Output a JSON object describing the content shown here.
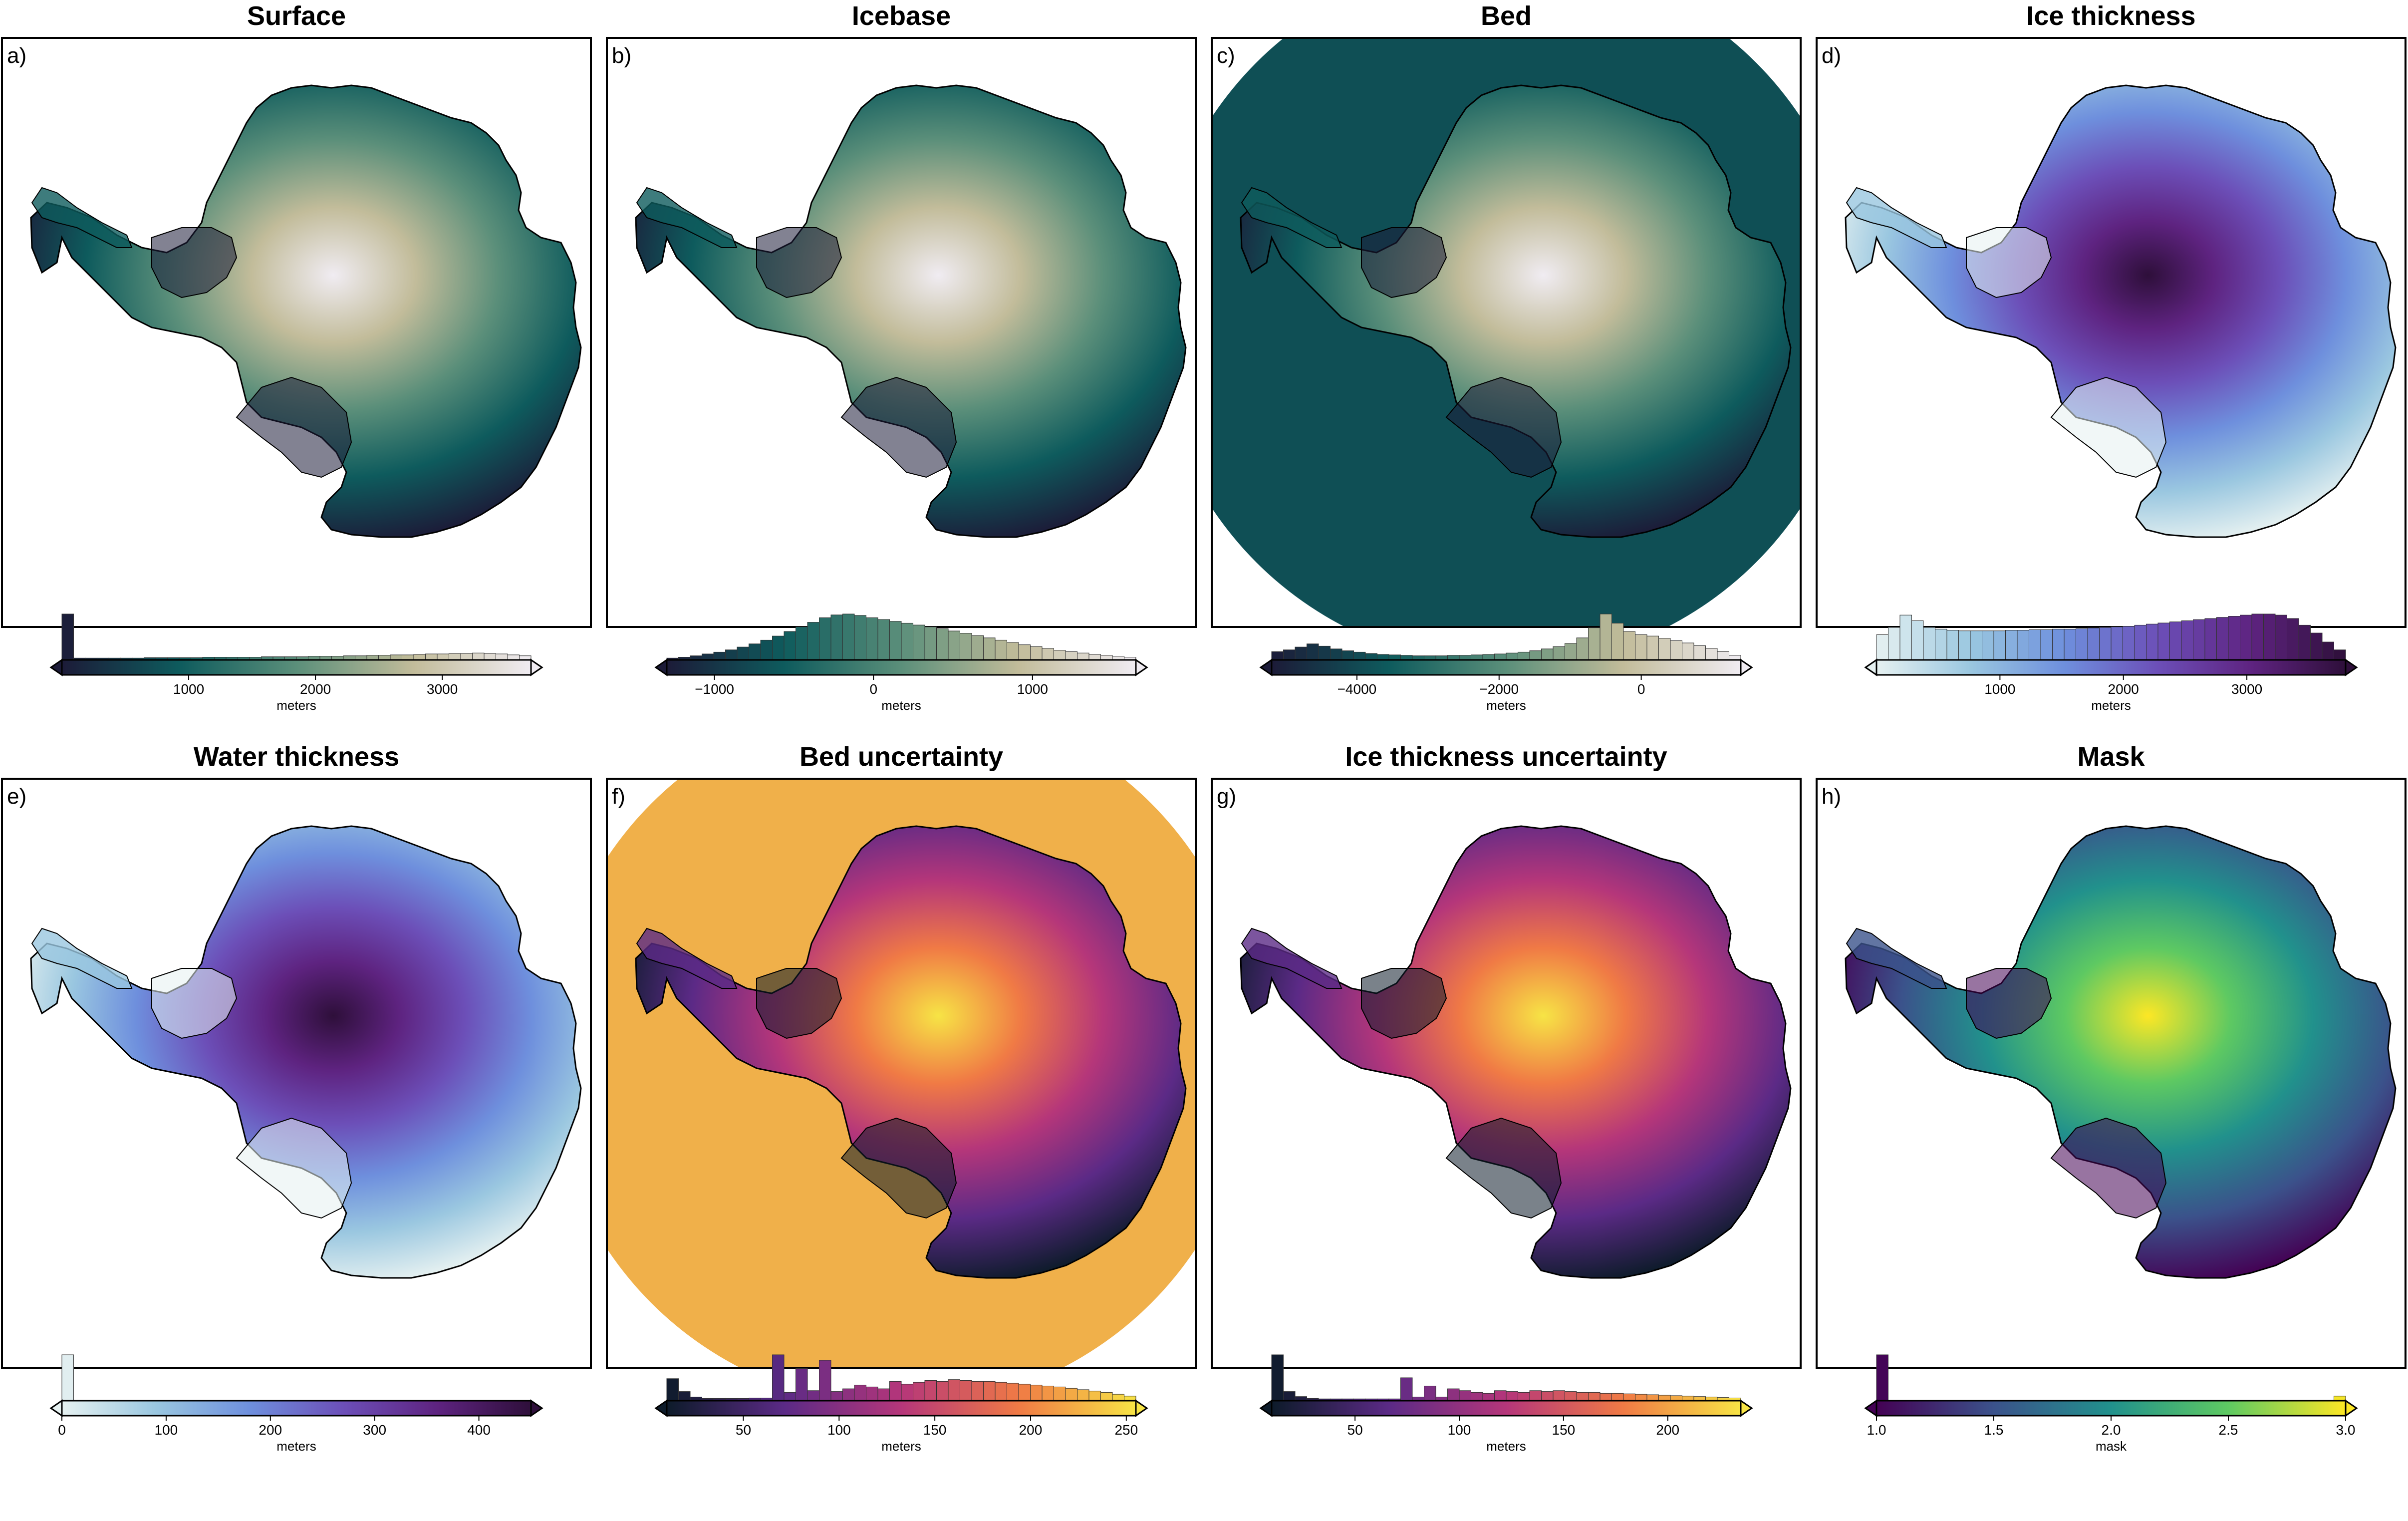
{
  "chart_data": [
    {
      "type": "map",
      "label": "a)",
      "title": "Surface",
      "colormap": "rain",
      "land_colors": [
        "#1c1b38",
        "#0e5b5d",
        "#5b8f7a",
        "#c2bc9a",
        "#f0ecf2"
      ],
      "ocean_color": "#ffffff",
      "colorbar": {
        "label": "meters",
        "range": [
          0,
          3700
        ],
        "ticks": [
          1000,
          2000,
          3000
        ],
        "tick_labels": [
          "1000",
          "2000",
          "3000"
        ],
        "colors": [
          "#1c1b38",
          "#0e5b5d",
          "#5b8f7a",
          "#c2bc9a",
          "#f0ecf2"
        ],
        "extend": "right",
        "histogram": [
          100,
          4,
          4,
          4,
          4,
          4,
          4,
          5,
          5,
          5,
          5,
          5,
          6,
          6,
          6,
          6,
          6,
          7,
          7,
          7,
          7,
          8,
          8,
          8,
          9,
          9,
          10,
          10,
          11,
          11,
          12,
          13,
          13,
          14,
          14,
          15,
          14,
          13,
          11,
          9
        ]
      }
    },
    {
      "type": "map",
      "label": "b)",
      "title": "Icebase",
      "colormap": "earth",
      "land_colors": [
        "#1c1b38",
        "#0e5b5d",
        "#5b8f7a",
        "#c2bc9a",
        "#f0ecf2"
      ],
      "ocean_color": "#ffffff",
      "colorbar": {
        "label": "meters",
        "range": [
          -1300,
          1650
        ],
        "ticks": [
          -1000,
          0,
          1000
        ],
        "tick_labels": [
          "−1000",
          "0",
          "1000"
        ],
        "colors": [
          "#1c1b38",
          "#0e5b5d",
          "#5b8f7a",
          "#c2bc9a",
          "#f0ecf2"
        ],
        "extend": "both",
        "histogram": [
          4,
          6,
          9,
          13,
          17,
          22,
          28,
          35,
          43,
          52,
          62,
          72,
          82,
          92,
          98,
          100,
          97,
          92,
          88,
          84,
          80,
          76,
          72,
          68,
          63,
          58,
          53,
          48,
          43,
          38,
          33,
          29,
          25,
          21,
          18,
          15,
          12,
          10,
          8,
          6
        ]
      }
    },
    {
      "type": "map",
      "label": "c)",
      "title": "Bed",
      "colormap": "earth",
      "land_colors": [
        "#1c1b38",
        "#0e5b5d",
        "#5b8f7a",
        "#c2bc9a",
        "#f0ecf2"
      ],
      "ocean_color": "#0f4f55",
      "colorbar": {
        "label": "meters",
        "range": [
          -5200,
          1400
        ],
        "ticks": [
          -4000,
          -2000,
          0
        ],
        "tick_labels": [
          "−4000",
          "−2000",
          "0"
        ],
        "colors": [
          "#1c1b38",
          "#0e5b5d",
          "#5b8f7a",
          "#c2bc9a",
          "#f0ecf2"
        ],
        "extend": "both",
        "histogram": [
          18,
          22,
          28,
          35,
          30,
          24,
          20,
          17,
          14,
          12,
          11,
          10,
          9,
          9,
          9,
          10,
          10,
          11,
          12,
          13,
          15,
          17,
          20,
          24,
          29,
          36,
          48,
          70,
          100,
          80,
          62,
          55,
          52,
          47,
          42,
          37,
          31,
          25,
          18,
          10
        ]
      }
    },
    {
      "type": "map",
      "label": "d)",
      "title": "Ice thickness",
      "colormap": "dense",
      "land_colors": [
        "#e6f1f1",
        "#9ac7e0",
        "#6e8fdd",
        "#6c4fb8",
        "#5e2380",
        "#2e0f3a"
      ],
      "ocean_color": "#ffffff",
      "colorbar": {
        "label": "meters",
        "range": [
          0,
          3800
        ],
        "ticks": [
          1000,
          2000,
          3000
        ],
        "tick_labels": [
          "1000",
          "2000",
          "3000"
        ],
        "colors": [
          "#e6f1f1",
          "#9ac7e0",
          "#6e8fdd",
          "#6c4fb8",
          "#5e2380",
          "#2e0f3a"
        ],
        "extend": "both",
        "histogram": [
          45,
          58,
          80,
          70,
          58,
          55,
          53,
          52,
          52,
          52,
          52,
          53,
          53,
          54,
          54,
          55,
          55,
          56,
          57,
          58,
          59,
          60,
          62,
          64,
          66,
          68,
          70,
          72,
          74,
          76,
          78,
          80,
          82,
          82,
          80,
          74,
          62,
          48,
          32,
          18
        ]
      }
    },
    {
      "type": "map",
      "label": "e)",
      "title": "Water thickness",
      "colormap": "dense",
      "land_colors": [
        "#e6f1f1",
        "#9ac7e0",
        "#6e8fdd",
        "#6c4fb8",
        "#5e2380",
        "#2e0f3a"
      ],
      "ocean_color": "#ffffff",
      "colorbar": {
        "label": "meters",
        "range": [
          0,
          450
        ],
        "ticks": [
          0,
          100,
          200,
          300,
          400
        ],
        "tick_labels": [
          "0",
          "100",
          "200",
          "300",
          "400"
        ],
        "colors": [
          "#e6f1f1",
          "#9ac7e0",
          "#6e8fdd",
          "#6c4fb8",
          "#5e2380",
          "#2e0f3a"
        ],
        "extend": "right",
        "histogram": [
          100,
          0.4,
          0.4,
          0.4,
          0.4,
          0.4,
          0.4,
          0.4,
          0.4,
          0.4,
          0.4,
          0.4,
          0.4,
          0.4,
          0.4,
          0.4,
          0.4,
          0.4,
          0.4,
          0.4,
          0.4,
          0.4,
          0.4,
          0.4,
          0.4,
          0.4,
          0.4,
          0.4,
          0.4,
          0.4,
          0.4,
          0.4,
          0.4,
          0.4,
          0.4,
          0.4,
          0.4,
          0.4,
          0.4,
          0.4
        ]
      }
    },
    {
      "type": "map",
      "label": "f)",
      "title": "Bed uncertainty",
      "colormap": "plasma",
      "land_colors": [
        "#0d1b2a",
        "#5b2a86",
        "#b5367a",
        "#f07a45",
        "#f7e445"
      ],
      "ocean_color": "#f0b04a",
      "colorbar": {
        "label": "meters",
        "range": [
          10,
          255
        ],
        "ticks": [
          50,
          100,
          150,
          200,
          250
        ],
        "tick_labels": [
          "50",
          "100",
          "150",
          "200",
          "250"
        ],
        "colors": [
          "#0d1b2a",
          "#5b2a86",
          "#b5367a",
          "#f07a45",
          "#f7e445"
        ],
        "extend": "right",
        "histogram": [
          48,
          20,
          8,
          5,
          5,
          5,
          5,
          6,
          6,
          100,
          18,
          70,
          22,
          88,
          20,
          26,
          34,
          30,
          26,
          42,
          36,
          40,
          44,
          42,
          46,
          44,
          42,
          42,
          40,
          38,
          36,
          34,
          32,
          30,
          27,
          24,
          21,
          18,
          14,
          10
        ]
      }
    },
    {
      "type": "map",
      "label": "g)",
      "title": "Ice thickness uncertainty",
      "colormap": "plasma",
      "land_colors": [
        "#0d1b2a",
        "#5b2a86",
        "#b5367a",
        "#f07a45",
        "#f7e445"
      ],
      "ocean_color": "#ffffff",
      "colorbar": {
        "label": "meters",
        "range": [
          10,
          235
        ],
        "ticks": [
          50,
          100,
          150,
          200
        ],
        "tick_labels": [
          "50",
          "100",
          "150",
          "200"
        ],
        "colors": [
          "#0d1b2a",
          "#5b2a86",
          "#b5367a",
          "#f07a45",
          "#f7e445"
        ],
        "extend": "right",
        "histogram": [
          100,
          20,
          9,
          5,
          4,
          4,
          4,
          4,
          4,
          4,
          4,
          50,
          8,
          32,
          8,
          26,
          22,
          18,
          16,
          22,
          20,
          18,
          22,
          20,
          22,
          20,
          18,
          18,
          16,
          16,
          15,
          14,
          13,
          12,
          11,
          10,
          9,
          8,
          7,
          6
        ]
      }
    },
    {
      "type": "map",
      "label": "h)",
      "title": "Mask",
      "colormap": "viridis",
      "land_colors": [
        "#440154",
        "#3b528b",
        "#21918c",
        "#5ec962",
        "#fde725"
      ],
      "ocean_color": "#ffffff",
      "colorbar": {
        "label": "mask",
        "range": [
          1.0,
          3.0
        ],
        "ticks": [
          1.0,
          1.5,
          2.0,
          2.5,
          3.0
        ],
        "tick_labels": [
          "1.0",
          "1.5",
          "2.0",
          "2.5",
          "3.0"
        ],
        "colors": [
          "#440154",
          "#3b528b",
          "#21918c",
          "#5ec962",
          "#fde725"
        ],
        "extend": "right",
        "histogram": [
          100,
          0.3,
          0.3,
          0.3,
          0.3,
          0.3,
          0.3,
          0.3,
          0.3,
          0.3,
          0.3,
          0.3,
          0.3,
          0.3,
          0.3,
          0.3,
          0.3,
          0.3,
          0.3,
          0.3,
          0.3,
          0.3,
          0.3,
          0.3,
          0.3,
          0.3,
          0.3,
          0.3,
          0.3,
          0.3,
          0.3,
          0.3,
          0.3,
          0.3,
          0.3,
          0.3,
          0.3,
          0.3,
          0.3,
          10
        ]
      }
    }
  ]
}
